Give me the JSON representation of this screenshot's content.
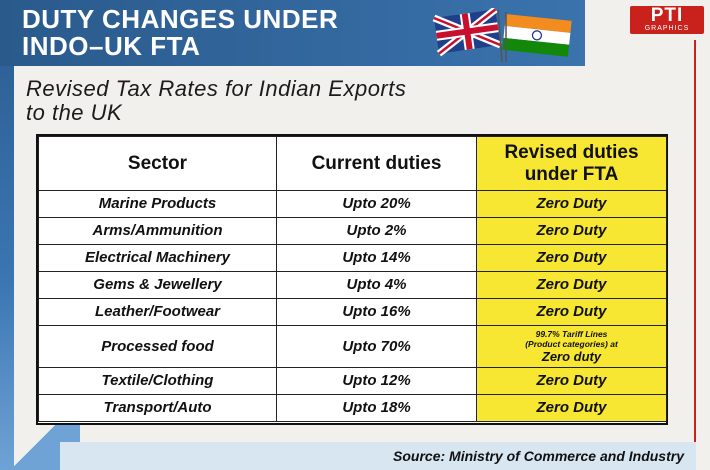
{
  "header": {
    "title_line1": "DUTY CHANGES UNDER",
    "title_line2": "INDO–UK FTA"
  },
  "logo": {
    "text": "PTI",
    "sub": "GRAPHICS",
    "color": "#c9221c"
  },
  "subtitle_line1": "Revised Tax Rates for Indian Exports",
  "subtitle_line2": "to the UK",
  "table": {
    "headers": [
      "Sector",
      "Current duties",
      "Revised duties",
      "under FTA"
    ],
    "rows": [
      {
        "sector": "Marine Products",
        "current": "Upto 20%",
        "revised": "Zero Duty"
      },
      {
        "sector": "Arms/Ammunition",
        "current": "Upto 2%",
        "revised": "Zero Duty"
      },
      {
        "sector": "Electrical Machinery",
        "current": "Upto 14%",
        "revised": "Zero Duty"
      },
      {
        "sector": "Gems & Jewellery",
        "current": "Upto 4%",
        "revised": "Zero Duty"
      },
      {
        "sector": "Leather/Footwear",
        "current": "Upto 16%",
        "revised": "Zero Duty"
      },
      {
        "sector": "Processed food",
        "current": "Upto 70%",
        "revised_note1": "99.7% Tariff Lines",
        "revised_note2": "(Product categories) at",
        "revised": "Zero duty"
      },
      {
        "sector": "Textile/Clothing",
        "current": "Upto 12%",
        "revised": "Zero Duty"
      },
      {
        "sector": "Transport/Auto",
        "current": "Upto 18%",
        "revised": "Zero Duty"
      }
    ],
    "highlight_color": "#f7e632"
  },
  "source": "Source: Ministry of Commerce and Industry",
  "colors": {
    "header_blue": "#2a5a8c",
    "accent_red": "#c9221c"
  }
}
